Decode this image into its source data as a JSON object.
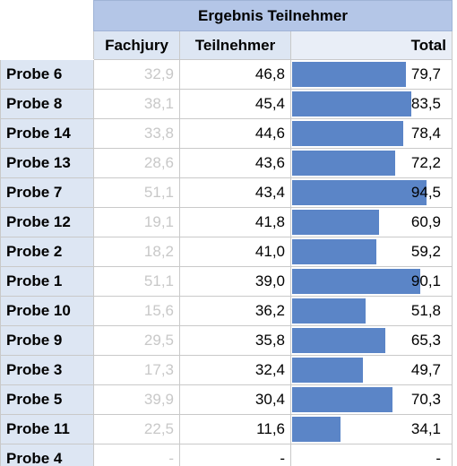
{
  "table": {
    "title": "Ergebnis Teilnehmer",
    "headers": {
      "label": "",
      "jury": "Fachjury",
      "participants": "Teilnehmer",
      "total": "Total"
    },
    "bar_color": "#5b85c7",
    "rows": [
      {
        "label": "Probe 6",
        "jury": "32,9",
        "participants": "46,8",
        "total": "79,7",
        "total_value": 79.7
      },
      {
        "label": "Probe 8",
        "jury": "38,1",
        "participants": "45,4",
        "total": "83,5",
        "total_value": 83.5
      },
      {
        "label": "Probe 14",
        "jury": "33,8",
        "participants": "44,6",
        "total": "78,4",
        "total_value": 78.4
      },
      {
        "label": "Probe 13",
        "jury": "28,6",
        "participants": "43,6",
        "total": "72,2",
        "total_value": 72.2
      },
      {
        "label": "Probe 7",
        "jury": "51,1",
        "participants": "43,4",
        "total": "94,5",
        "total_value": 94.5
      },
      {
        "label": "Probe 12",
        "jury": "19,1",
        "participants": "41,8",
        "total": "60,9",
        "total_value": 60.9
      },
      {
        "label": "Probe 2",
        "jury": "18,2",
        "participants": "41,0",
        "total": "59,2",
        "total_value": 59.2
      },
      {
        "label": "Probe 1",
        "jury": "51,1",
        "participants": "39,0",
        "total": "90,1",
        "total_value": 90.1
      },
      {
        "label": "Probe 10",
        "jury": "15,6",
        "participants": "36,2",
        "total": "51,8",
        "total_value": 51.8
      },
      {
        "label": "Probe 9",
        "jury": "29,5",
        "participants": "35,8",
        "total": "65,3",
        "total_value": 65.3
      },
      {
        "label": "Probe 3",
        "jury": "17,3",
        "participants": "32,4",
        "total": "49,7",
        "total_value": 49.7
      },
      {
        "label": "Probe 5",
        "jury": "39,9",
        "participants": "30,4",
        "total": "70,3",
        "total_value": 70.3
      },
      {
        "label": "Probe 11",
        "jury": "22,5",
        "participants": "11,6",
        "total": "34,1",
        "total_value": 34.1
      },
      {
        "label": "Probe 4",
        "jury": "-",
        "participants": "-",
        "total": "-",
        "total_value": 0
      }
    ],
    "bar_max": 94.5
  }
}
